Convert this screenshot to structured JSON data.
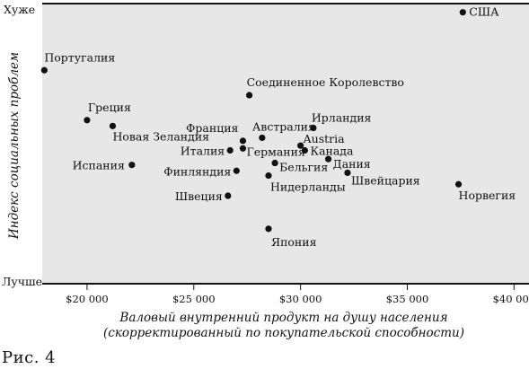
{
  "chart_data": {
    "type": "scatter",
    "xlabel": "Валовый внутренний продукт на душу населения",
    "xlabel_line2": "(скорректированный по покупательской способности)",
    "ylabel": "Индекс социальных проблем",
    "y_top_label": "Хуже",
    "y_bottom_label": "Лучше",
    "xlim": [
      17900,
      40700
    ],
    "ylim": [
      0,
      100
    ],
    "x_ticks": [
      20000,
      25000,
      30000,
      35000,
      40000
    ],
    "x_tick_labels": [
      "$20 000",
      "$25 000",
      "$30 000",
      "$35 000",
      "$40 000"
    ],
    "grid": false,
    "background": "#e7e7e7",
    "point_color": "#111111",
    "points": [
      {
        "label": "США",
        "x": 37600,
        "y": 96.9
      },
      {
        "label": "Португалия",
        "x": 18000,
        "y": 76.2
      },
      {
        "label": "Соединенное Королевство",
        "x": 27600,
        "y": 67.3
      },
      {
        "label": "Греция",
        "x": 20000,
        "y": 58.4
      },
      {
        "label": "Новая Зеландия",
        "x": 21200,
        "y": 56.3
      },
      {
        "label": "Ирландия",
        "x": 30600,
        "y": 55.6
      },
      {
        "label": "Австралия",
        "x": 28200,
        "y": 52.1
      },
      {
        "label": "Франция",
        "x": 27300,
        "y": 51.0
      },
      {
        "label": "Austria",
        "x": 30000,
        "y": 49.3
      },
      {
        "label": "Германия",
        "x": 27300,
        "y": 48.3
      },
      {
        "label": "Канада",
        "x": 30200,
        "y": 47.6
      },
      {
        "label": "Италия",
        "x": 26700,
        "y": 47.6
      },
      {
        "label": "Дания",
        "x": 31300,
        "y": 44.5
      },
      {
        "label": "Бельгия",
        "x": 28800,
        "y": 43.1
      },
      {
        "label": "Испания",
        "x": 22100,
        "y": 42.4
      },
      {
        "label": "Финляндия",
        "x": 27000,
        "y": 40.3
      },
      {
        "label": "Швейцария",
        "x": 32200,
        "y": 39.6
      },
      {
        "label": "Нидерланды",
        "x": 28500,
        "y": 38.6
      },
      {
        "label": "Норвегия",
        "x": 37400,
        "y": 35.5
      },
      {
        "label": "Швеция",
        "x": 26600,
        "y": 31.4
      },
      {
        "label": "Япония",
        "x": 28500,
        "y": 19.6
      }
    ]
  },
  "caption": "Рис. 4"
}
